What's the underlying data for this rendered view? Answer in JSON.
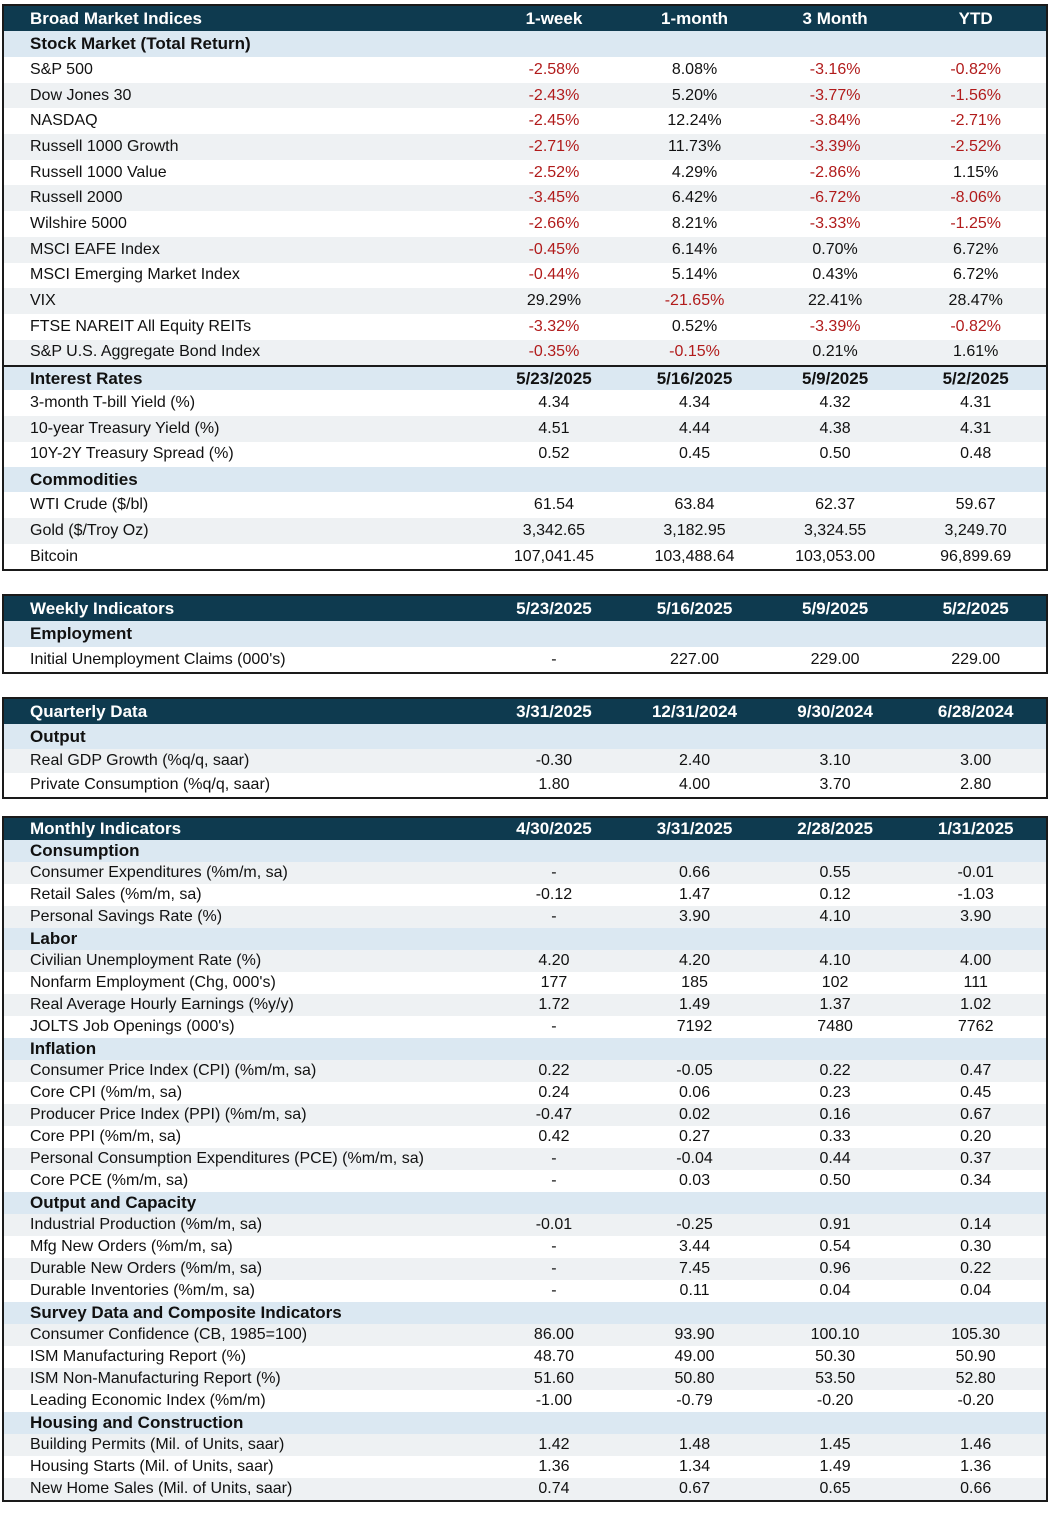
{
  "broad": {
    "title": "Broad Market Indices",
    "cols": [
      "1-week",
      "1-month",
      "3 Month",
      "YTD"
    ],
    "stock_section": "Stock Market (Total Return)",
    "stock_rows": [
      {
        "label": "S&P 500",
        "v": [
          "-2.58%",
          "8.08%",
          "-3.16%",
          "-0.82%"
        ]
      },
      {
        "label": "Dow Jones 30",
        "v": [
          "-2.43%",
          "5.20%",
          "-3.77%",
          "-1.56%"
        ]
      },
      {
        "label": "NASDAQ",
        "v": [
          "-2.45%",
          "12.24%",
          "-3.84%",
          "-2.71%"
        ]
      },
      {
        "label": "Russell 1000 Growth",
        "v": [
          "-2.71%",
          "11.73%",
          "-3.39%",
          "-2.52%"
        ]
      },
      {
        "label": "Russell 1000 Value",
        "v": [
          "-2.52%",
          "4.29%",
          "-2.86%",
          "1.15%"
        ]
      },
      {
        "label": "Russell 2000",
        "v": [
          "-3.45%",
          "6.42%",
          "-6.72%",
          "-8.06%"
        ]
      },
      {
        "label": "Wilshire 5000",
        "v": [
          "-2.66%",
          "8.21%",
          "-3.33%",
          "-1.25%"
        ]
      },
      {
        "label": "MSCI EAFE  Index",
        "v": [
          "-0.45%",
          "6.14%",
          "0.70%",
          "6.72%"
        ]
      },
      {
        "label": "MSCI Emerging Market Index",
        "v": [
          "-0.44%",
          "5.14%",
          "0.43%",
          "6.72%"
        ]
      },
      {
        "label": "VIX",
        "v": [
          "29.29%",
          "-21.65%",
          "22.41%",
          "28.47%"
        ]
      },
      {
        "label": "FTSE NAREIT All Equity REITs",
        "v": [
          "-3.32%",
          "0.52%",
          "-3.39%",
          "-0.82%"
        ]
      },
      {
        "label": "S&P U.S. Aggregate Bond Index",
        "v": [
          "-0.35%",
          "-0.15%",
          "0.21%",
          "1.61%"
        ]
      }
    ],
    "rates_section": "Interest Rates",
    "rates_cols": [
      "5/23/2025",
      "5/16/2025",
      "5/9/2025",
      "5/2/2025"
    ],
    "rates_rows": [
      {
        "label": "3-month T-bill Yield (%)",
        "v": [
          "4.34",
          "4.34",
          "4.32",
          "4.31"
        ]
      },
      {
        "label": "10-year Treasury Yield (%)",
        "v": [
          "4.51",
          "4.44",
          "4.38",
          "4.31"
        ]
      },
      {
        "label": "10Y-2Y Treasury Spread (%)",
        "v": [
          "0.52",
          "0.45",
          "0.50",
          "0.48"
        ]
      }
    ],
    "comm_section": "Commodities",
    "comm_rows": [
      {
        "label": "WTI Crude ($/bl)",
        "v": [
          "61.54",
          "63.84",
          "62.37",
          "59.67"
        ]
      },
      {
        "label": "Gold ($/Troy Oz)",
        "v": [
          "3,342.65",
          "3,182.95",
          "3,324.55",
          "3,249.70"
        ]
      },
      {
        "label": "Bitcoin",
        "v": [
          "107,041.45",
          "103,488.64",
          "103,053.00",
          "96,899.69"
        ]
      }
    ]
  },
  "weekly": {
    "title": "Weekly Indicators",
    "cols": [
      "5/23/2025",
      "5/16/2025",
      "5/9/2025",
      "5/2/2025"
    ],
    "section": "Employment",
    "rows": [
      {
        "label": "Initial Unemployment Claims (000's)",
        "v": [
          "-",
          "227.00",
          "229.00",
          "229.00"
        ]
      }
    ]
  },
  "quarterly": {
    "title": "Quarterly Data",
    "cols": [
      "3/31/2025",
      "12/31/2024",
      "9/30/2024",
      "6/28/2024"
    ],
    "section": "Output",
    "rows": [
      {
        "label": "Real GDP Growth (%q/q, saar)",
        "v": [
          "-0.30",
          "2.40",
          "3.10",
          "3.00"
        ]
      },
      {
        "label": "Private Consumption (%q/q, saar)",
        "v": [
          "1.80",
          "4.00",
          "3.70",
          "2.80"
        ]
      }
    ]
  },
  "monthly": {
    "title": "Monthly Indicators",
    "cols": [
      "4/30/2025",
      "3/31/2025",
      "2/28/2025",
      "1/31/2025"
    ],
    "sections": [
      {
        "name": "Consumption",
        "rows": [
          {
            "label": "Consumer Expenditures (%m/m, sa)",
            "v": [
              "-",
              "0.66",
              "0.55",
              "-0.01"
            ]
          },
          {
            "label": "Retail Sales (%m/m, sa)",
            "v": [
              "-0.12",
              "1.47",
              "0.12",
              "-1.03"
            ]
          },
          {
            "label": "Personal Savings Rate (%)",
            "v": [
              "-",
              "3.90",
              "4.10",
              "3.90"
            ]
          }
        ]
      },
      {
        "name": "Labor",
        "rows": [
          {
            "label": "Civilian Unemployment Rate (%)",
            "v": [
              "4.20",
              "4.20",
              "4.10",
              "4.00"
            ]
          },
          {
            "label": "Nonfarm Employment (Chg, 000's)",
            "v": [
              "177",
              "185",
              "102",
              "111"
            ]
          },
          {
            "label": "Real Average Hourly Earnings (%y/y)",
            "v": [
              "1.72",
              "1.49",
              "1.37",
              "1.02"
            ]
          },
          {
            "label": "JOLTS Job Openings (000's)",
            "v": [
              "-",
              "7192",
              "7480",
              "7762"
            ]
          }
        ]
      },
      {
        "name": "Inflation",
        "rows": [
          {
            "label": "Consumer Price Index (CPI) (%m/m, sa)",
            "v": [
              "0.22",
              "-0.05",
              "0.22",
              "0.47"
            ]
          },
          {
            "label": "Core CPI (%m/m, sa)",
            "v": [
              "0.24",
              "0.06",
              "0.23",
              "0.45"
            ]
          },
          {
            "label": "Producer Price Index (PPI) (%m/m, sa)",
            "v": [
              "-0.47",
              "0.02",
              "0.16",
              "0.67"
            ]
          },
          {
            "label": "Core PPI (%m/m, sa)",
            "v": [
              "0.42",
              "0.27",
              "0.33",
              "0.20"
            ]
          },
          {
            "label": "Personal Consumption Expenditures (PCE) (%m/m, sa)",
            "v": [
              "-",
              "-0.04",
              "0.44",
              "0.37"
            ]
          },
          {
            "label": "Core PCE (%m/m, sa)",
            "v": [
              "-",
              "0.03",
              "0.50",
              "0.34"
            ]
          }
        ]
      },
      {
        "name": "Output and Capacity",
        "rows": [
          {
            "label": "Industrial Production (%m/m, sa)",
            "v": [
              "-0.01",
              "-0.25",
              "0.91",
              "0.14"
            ]
          },
          {
            "label": "Mfg New Orders (%m/m, sa)",
            "v": [
              "-",
              "3.44",
              "0.54",
              "0.30"
            ]
          },
          {
            "label": "Durable New Orders (%m/m, sa)",
            "v": [
              "-",
              "7.45",
              "0.96",
              "0.22"
            ]
          },
          {
            "label": "Durable Inventories (%m/m, sa)",
            "v": [
              "-",
              "0.11",
              "0.04",
              "0.04"
            ]
          }
        ]
      },
      {
        "name": "Survey Data and Composite Indicators",
        "rows": [
          {
            "label": "Consumer Confidence (CB, 1985=100)",
            "v": [
              "86.00",
              "93.90",
              "100.10",
              "105.30"
            ]
          },
          {
            "label": "ISM Manufacturing Report (%)",
            "v": [
              "48.70",
              "49.00",
              "50.30",
              "50.90"
            ]
          },
          {
            "label": "ISM Non-Manufacturing Report (%)",
            "v": [
              "51.60",
              "50.80",
              "53.50",
              "52.80"
            ]
          },
          {
            "label": "Leading Economic Index (%m/m)",
            "v": [
              "-1.00",
              "-0.79",
              "-0.20",
              "-0.20"
            ]
          }
        ]
      },
      {
        "name": "Housing and Construction",
        "rows": [
          {
            "label": "Building Permits (Mil. of Units, saar)",
            "v": [
              "1.42",
              "1.48",
              "1.45",
              "1.46"
            ]
          },
          {
            "label": "Housing Starts (Mil. of Units, saar)",
            "v": [
              "1.36",
              "1.34",
              "1.49",
              "1.36"
            ]
          },
          {
            "label": "New Home Sales (Mil. of Units, saar)",
            "v": [
              "0.74",
              "0.67",
              "0.65",
              "0.66"
            ]
          }
        ]
      }
    ]
  }
}
